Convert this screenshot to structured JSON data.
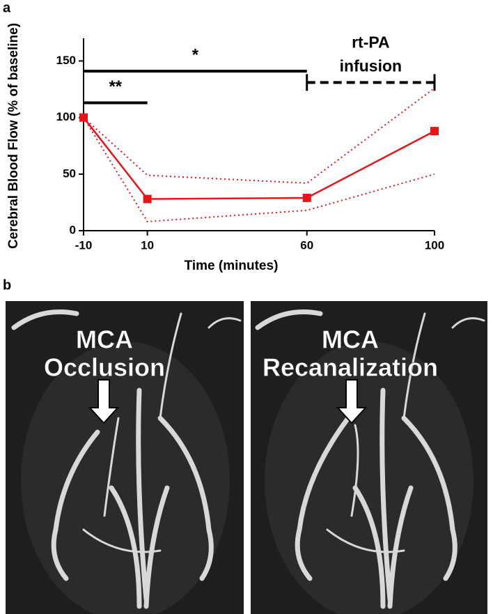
{
  "panel_labels": [
    "a",
    "b"
  ],
  "chart_data": {
    "type": "line",
    "xlabel": "Time (minutes)",
    "ylabel": "Cerebral Blood Flow (% of baseline)",
    "x": [
      -10,
      10,
      60,
      100
    ],
    "series": [
      {
        "color": "#e8141a",
        "style": "solid",
        "markers": true,
        "values": [
          100,
          28,
          29,
          88
        ]
      },
      {
        "color": "#e8141a",
        "style": "dotted",
        "markers": false,
        "values": [
          100,
          49,
          42,
          126
        ]
      },
      {
        "color": "#e8141a",
        "style": "dotted",
        "markers": false,
        "values": [
          100,
          8,
          18,
          50
        ]
      }
    ],
    "xlim": [
      -10,
      100
    ],
    "xticks": [
      -10,
      10,
      60,
      100
    ],
    "ylim": [
      0,
      170
    ],
    "yticks": [
      0,
      50,
      100,
      150
    ],
    "annotations": [
      {
        "label": [
          "**"
        ],
        "x": [
          -10,
          10
        ],
        "y": 113,
        "dashed": false
      },
      {
        "label": [
          "*"
        ],
        "x": [
          -10,
          60
        ],
        "y": 141,
        "dashed": false
      },
      {
        "label": [
          "rt-PA",
          "infusion"
        ],
        "x": [
          60,
          100
        ],
        "y": 131,
        "dashed": true
      }
    ]
  },
  "images": [
    {
      "lines": [
        "MCA",
        "Occlusion"
      ]
    },
    {
      "lines": [
        "MCA",
        "Recanalization"
      ]
    }
  ]
}
